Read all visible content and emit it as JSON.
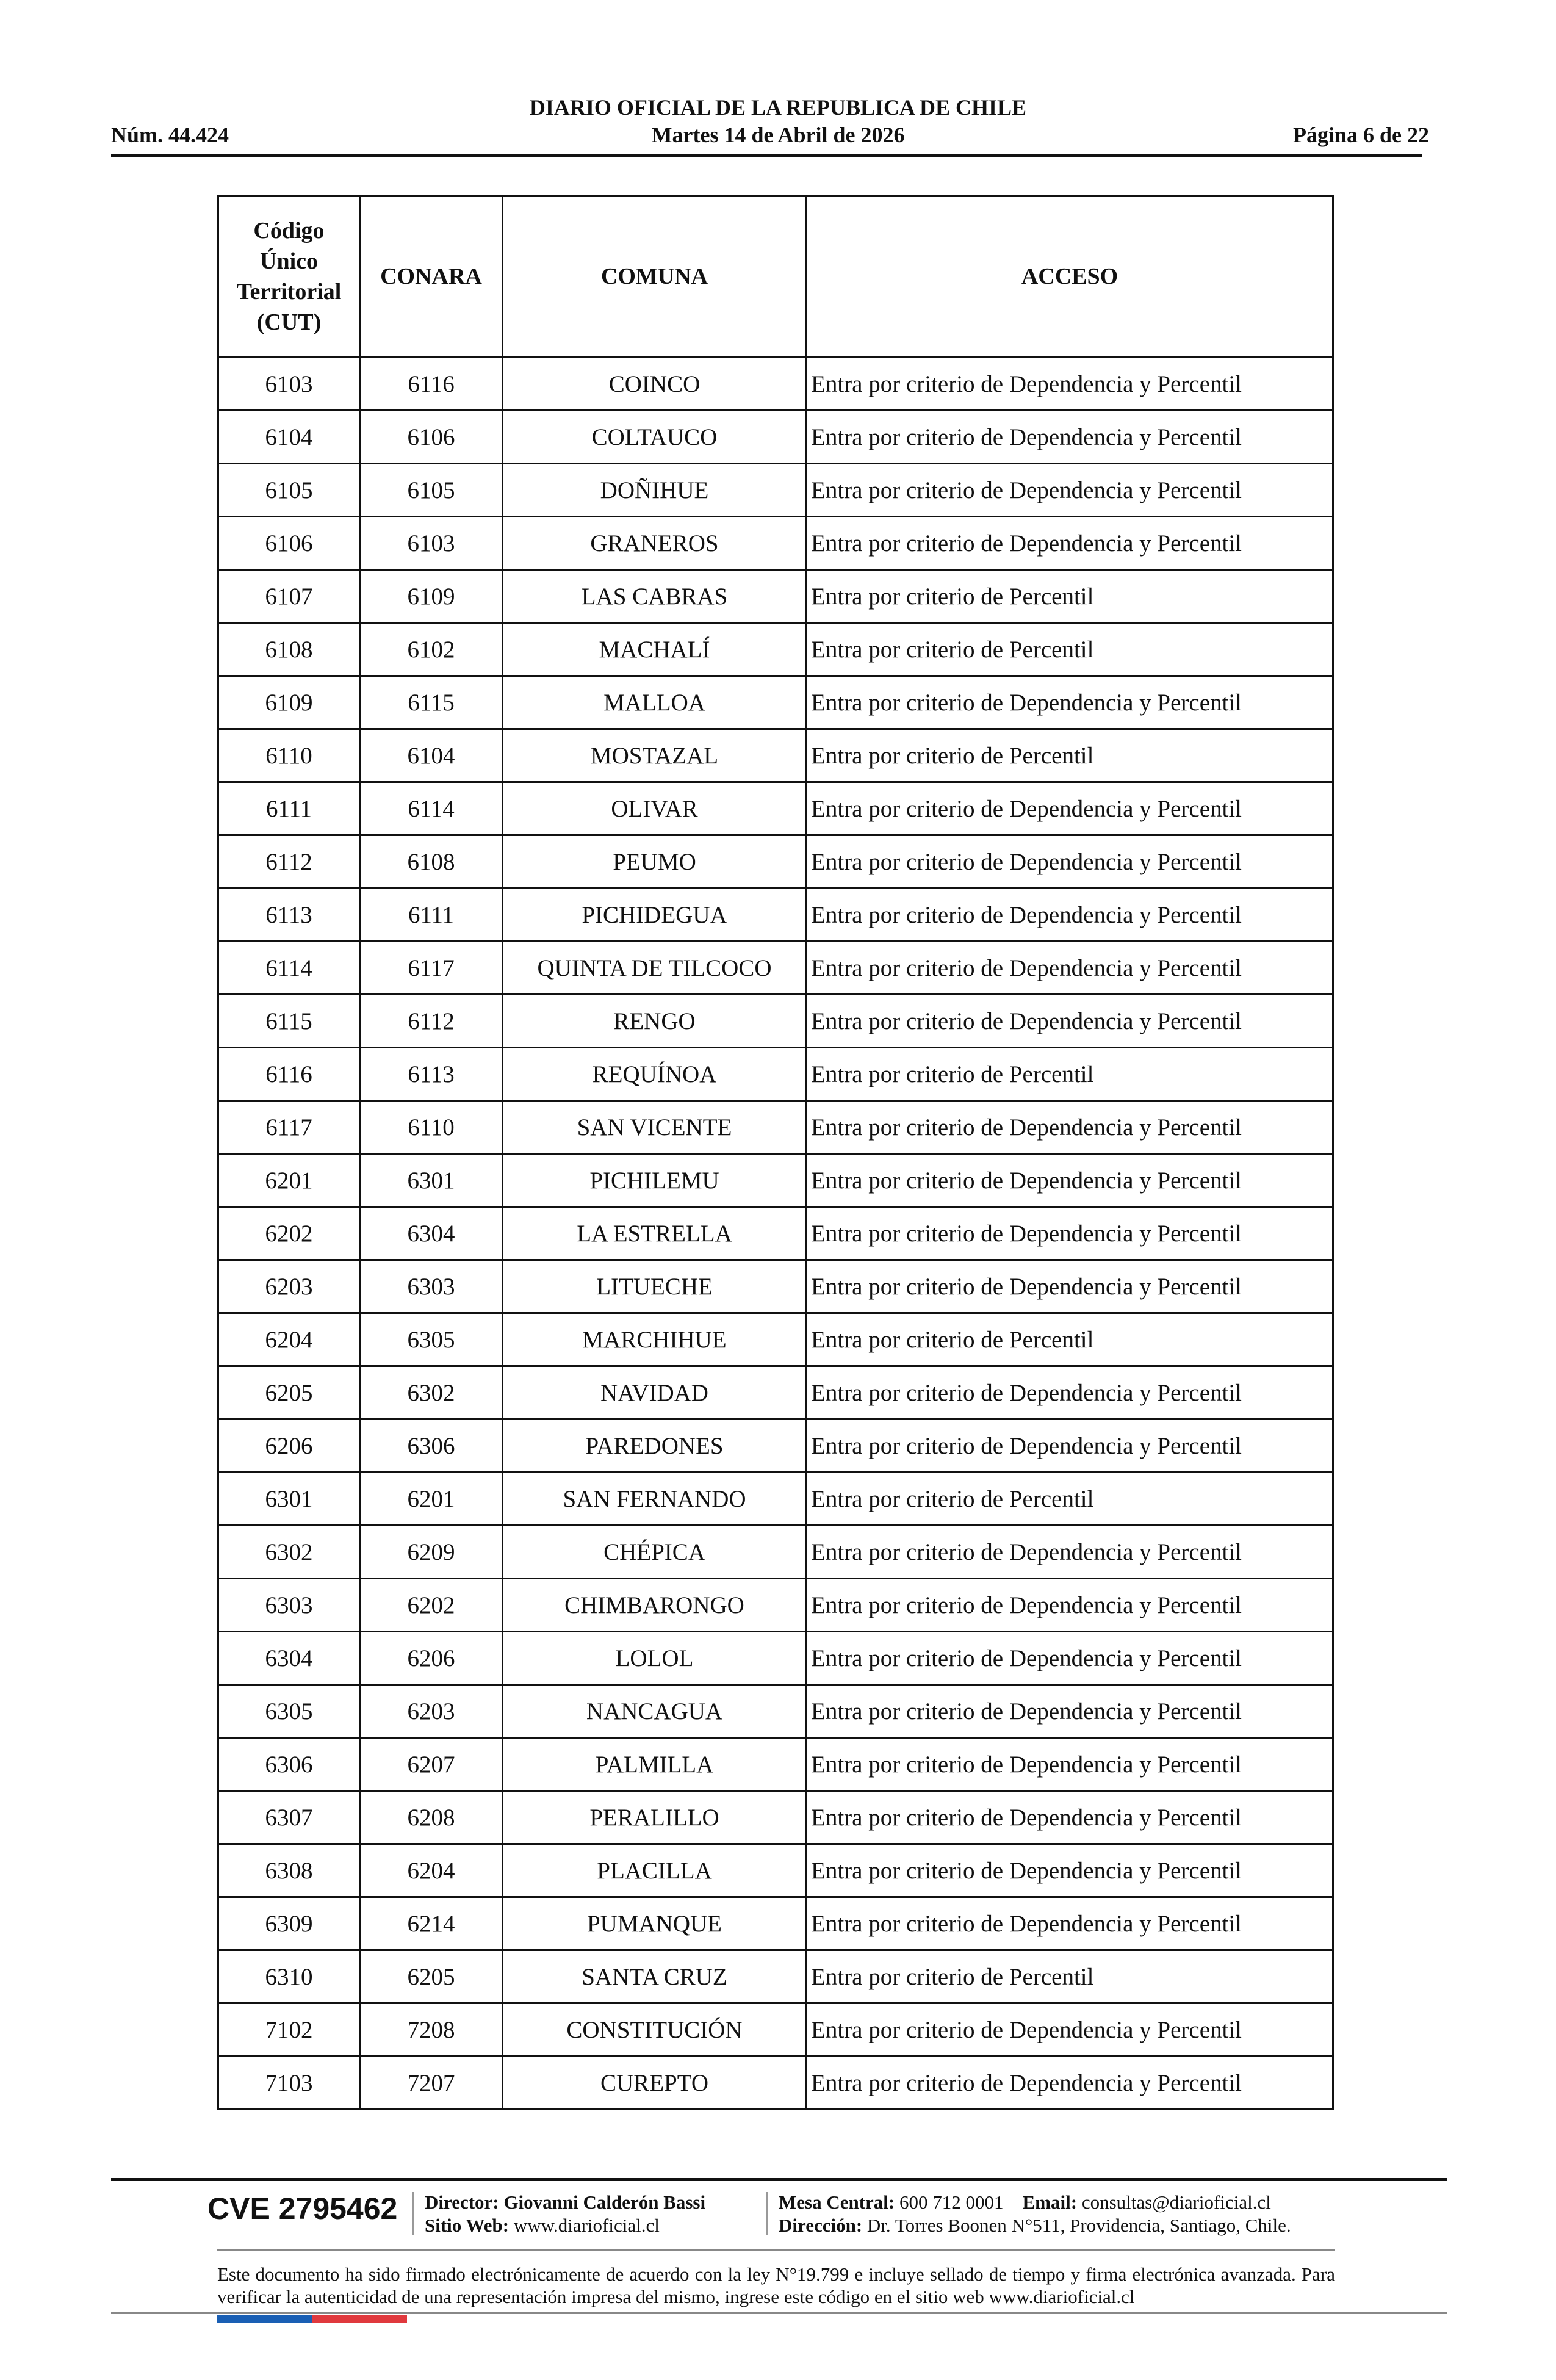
{
  "header": {
    "title": "DIARIO OFICIAL DE LA REPUBLICA DE CHILE",
    "number": "Núm. 44.424",
    "date": "Martes 14 de Abril de 2026",
    "page": "Página 6 de 22"
  },
  "table": {
    "headers": [
      "Código Único Territorial (CUT)",
      "CONARA",
      "COMUNA",
      "ACCESO"
    ],
    "rows": [
      [
        "6103",
        "6116",
        "COINCO",
        "Entra por criterio de Dependencia y Percentil"
      ],
      [
        "6104",
        "6106",
        "COLTAUCO",
        "Entra por criterio de Dependencia y Percentil"
      ],
      [
        "6105",
        "6105",
        "DOÑIHUE",
        "Entra por criterio de Dependencia y Percentil"
      ],
      [
        "6106",
        "6103",
        "GRANEROS",
        "Entra por criterio de Dependencia y Percentil"
      ],
      [
        "6107",
        "6109",
        "LAS CABRAS",
        "Entra por criterio de Percentil"
      ],
      [
        "6108",
        "6102",
        "MACHALÍ",
        "Entra por criterio de Percentil"
      ],
      [
        "6109",
        "6115",
        "MALLOA",
        "Entra por criterio de Dependencia y Percentil"
      ],
      [
        "6110",
        "6104",
        "MOSTAZAL",
        "Entra por criterio de Percentil"
      ],
      [
        "6111",
        "6114",
        "OLIVAR",
        "Entra por criterio de Dependencia y Percentil"
      ],
      [
        "6112",
        "6108",
        "PEUMO",
        "Entra por criterio de Dependencia y Percentil"
      ],
      [
        "6113",
        "6111",
        "PICHIDEGUA",
        "Entra por criterio de Dependencia y Percentil"
      ],
      [
        "6114",
        "6117",
        "QUINTA DE TILCOCO",
        "Entra por criterio de Dependencia y Percentil"
      ],
      [
        "6115",
        "6112",
        "RENGO",
        "Entra por criterio de Dependencia y Percentil"
      ],
      [
        "6116",
        "6113",
        "REQUÍNOA",
        "Entra por criterio de Percentil"
      ],
      [
        "6117",
        "6110",
        "SAN VICENTE",
        "Entra por criterio de Dependencia y Percentil"
      ],
      [
        "6201",
        "6301",
        "PICHILEMU",
        "Entra por criterio de Dependencia y Percentil"
      ],
      [
        "6202",
        "6304",
        "LA ESTRELLA",
        "Entra por criterio de Dependencia y Percentil"
      ],
      [
        "6203",
        "6303",
        "LITUECHE",
        "Entra por criterio de Dependencia y Percentil"
      ],
      [
        "6204",
        "6305",
        "MARCHIHUE",
        "Entra por criterio de Percentil"
      ],
      [
        "6205",
        "6302",
        "NAVIDAD",
        "Entra por criterio de Dependencia y Percentil"
      ],
      [
        "6206",
        "6306",
        "PAREDONES",
        "Entra por criterio de Dependencia y Percentil"
      ],
      [
        "6301",
        "6201",
        "SAN FERNANDO",
        "Entra por criterio de Percentil"
      ],
      [
        "6302",
        "6209",
        "CHÉPICA",
        "Entra por criterio de Dependencia y Percentil"
      ],
      [
        "6303",
        "6202",
        "CHIMBARONGO",
        "Entra por criterio de Dependencia y Percentil"
      ],
      [
        "6304",
        "6206",
        "LOLOL",
        "Entra por criterio de Dependencia y Percentil"
      ],
      [
        "6305",
        "6203",
        "NANCAGUA",
        "Entra por criterio de Dependencia y Percentil"
      ],
      [
        "6306",
        "6207",
        "PALMILLA",
        "Entra por criterio de Dependencia y Percentil"
      ],
      [
        "6307",
        "6208",
        "PERALILLO",
        "Entra por criterio de Dependencia y Percentil"
      ],
      [
        "6308",
        "6204",
        "PLACILLA",
        "Entra por criterio de Dependencia y Percentil"
      ],
      [
        "6309",
        "6214",
        "PUMANQUE",
        "Entra por criterio de Dependencia y Percentil"
      ],
      [
        "6310",
        "6205",
        "SANTA CRUZ",
        "Entra por criterio de Percentil"
      ],
      [
        "7102",
        "7208",
        "CONSTITUCIÓN",
        "Entra por criterio de Dependencia y Percentil"
      ],
      [
        "7103",
        "7207",
        "CUREPTO",
        "Entra por criterio de Dependencia y Percentil"
      ]
    ]
  },
  "footer": {
    "cve": "CVE 2795462",
    "director_label": "Director:",
    "director": "Giovanni Calderón Bassi",
    "web_label": "Sitio Web:",
    "web": "www.diarioficial.cl",
    "phone_label": "Mesa Central:",
    "phone": "600 712 0001",
    "email_label": "Email:",
    "email": "consultas@diarioficial.cl",
    "address_label": "Dirección:",
    "address": "Dr. Torres Boonen N°511, Providencia, Santiago, Chile.",
    "disclaimer": "Este documento ha sido firmado electrónicamente de acuerdo con la ley N°19.799 e incluye sellado de tiempo y firma electrónica avanzada. Para verificar la autenticidad de una representación impresa del mismo, ingrese este código en el sitio web www.diarioficial.cl",
    "flag_colors": [
      "#1a5fb4",
      "#e0393e"
    ]
  }
}
